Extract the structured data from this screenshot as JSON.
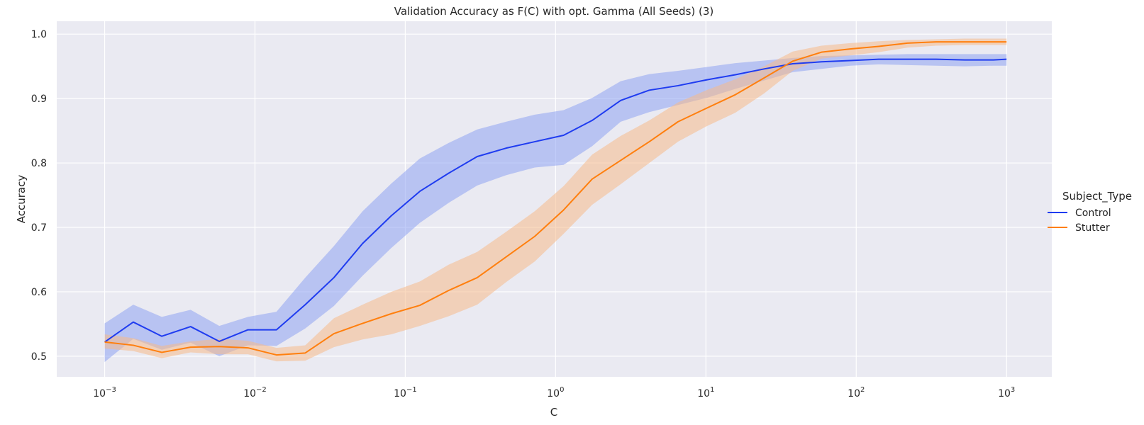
{
  "chart_data": {
    "type": "line",
    "title": "Validation Accuracy as F(C) with opt. Gamma (All Seeds) (3)",
    "xlabel": "C",
    "ylabel": "Accuracy",
    "x_scale": "log",
    "xlim": [
      0.00048,
      2000
    ],
    "ylim": [
      0.468,
      1.02
    ],
    "x_ticks": [
      {
        "value": 0.001,
        "base": "10",
        "exp": "−3"
      },
      {
        "value": 0.01,
        "base": "10",
        "exp": "−2"
      },
      {
        "value": 0.1,
        "base": "10",
        "exp": "−1"
      },
      {
        "value": 1,
        "base": "10",
        "exp": "0"
      },
      {
        "value": 10,
        "base": "10",
        "exp": "1"
      },
      {
        "value": 100,
        "base": "10",
        "exp": "2"
      },
      {
        "value": 1000,
        "base": "10",
        "exp": "3"
      }
    ],
    "y_ticks": [
      {
        "value": 0.5,
        "label": "0.5"
      },
      {
        "value": 0.6,
        "label": "0.6"
      },
      {
        "value": 0.7,
        "label": "0.7"
      },
      {
        "value": 0.8,
        "label": "0.8"
      },
      {
        "value": 0.9,
        "label": "0.9"
      },
      {
        "value": 1.0,
        "label": "1.0"
      }
    ],
    "grid": true,
    "legend": {
      "title": "Subject_Type",
      "placement": "right"
    },
    "x": [
      0.001,
      0.00155,
      0.0024,
      0.00373,
      0.00579,
      0.00898,
      0.0139,
      0.0216,
      0.0335,
      0.052,
      0.0807,
      0.125,
      0.194,
      0.301,
      0.468,
      0.726,
      1.13,
      1.75,
      2.71,
      4.2,
      6.52,
      10.1,
      15.7,
      24.4,
      37.8,
      58.7,
      91.1,
      141,
      219,
      340,
      527,
      818,
      1000
    ],
    "series": [
      {
        "name": "Control",
        "color": "#1f3cf0",
        "band_color": "#8ea3f2",
        "values": [
          0.522,
          0.553,
          0.531,
          0.546,
          0.523,
          0.541,
          0.541,
          0.58,
          0.622,
          0.675,
          0.718,
          0.756,
          0.784,
          0.81,
          0.823,
          0.833,
          0.843,
          0.866,
          0.897,
          0.913,
          0.92,
          0.929,
          0.937,
          0.946,
          0.954,
          0.957,
          0.959,
          0.961,
          0.961,
          0.961,
          0.96,
          0.96,
          0.961
        ],
        "ci_lower": [
          0.491,
          0.527,
          0.51,
          0.521,
          0.5,
          0.517,
          0.516,
          0.543,
          0.578,
          0.625,
          0.668,
          0.707,
          0.738,
          0.765,
          0.781,
          0.793,
          0.797,
          0.826,
          0.864,
          0.879,
          0.89,
          0.901,
          0.915,
          0.928,
          0.941,
          0.946,
          0.951,
          0.953,
          0.952,
          0.951,
          0.95,
          0.951,
          0.951
        ],
        "ci_upper": [
          0.551,
          0.58,
          0.561,
          0.572,
          0.547,
          0.561,
          0.569,
          0.622,
          0.671,
          0.725,
          0.768,
          0.807,
          0.831,
          0.852,
          0.864,
          0.875,
          0.882,
          0.901,
          0.927,
          0.938,
          0.943,
          0.949,
          0.955,
          0.959,
          0.963,
          0.966,
          0.967,
          0.968,
          0.969,
          0.969,
          0.969,
          0.969,
          0.969
        ]
      },
      {
        "name": "Stutter",
        "color": "#ff7f0e",
        "band_color": "#f5b98b",
        "values": [
          0.522,
          0.517,
          0.506,
          0.514,
          0.515,
          0.513,
          0.502,
          0.505,
          0.535,
          0.551,
          0.566,
          0.579,
          0.602,
          0.622,
          0.654,
          0.686,
          0.727,
          0.775,
          0.804,
          0.833,
          0.864,
          0.885,
          0.906,
          0.932,
          0.958,
          0.972,
          0.977,
          0.981,
          0.986,
          0.988,
          0.988,
          0.988,
          0.988
        ],
        "ci_lower": [
          0.512,
          0.508,
          0.497,
          0.506,
          0.503,
          0.503,
          0.492,
          0.493,
          0.514,
          0.526,
          0.534,
          0.547,
          0.562,
          0.58,
          0.615,
          0.647,
          0.69,
          0.735,
          0.767,
          0.8,
          0.833,
          0.857,
          0.878,
          0.908,
          0.943,
          0.962,
          0.967,
          0.972,
          0.979,
          0.982,
          0.983,
          0.983,
          0.983
        ],
        "ci_upper": [
          0.534,
          0.528,
          0.516,
          0.523,
          0.527,
          0.524,
          0.513,
          0.517,
          0.559,
          0.58,
          0.6,
          0.616,
          0.642,
          0.662,
          0.693,
          0.725,
          0.764,
          0.813,
          0.842,
          0.866,
          0.894,
          0.913,
          0.93,
          0.95,
          0.973,
          0.982,
          0.986,
          0.989,
          0.991,
          0.992,
          0.993,
          0.993,
          0.993
        ]
      }
    ]
  }
}
